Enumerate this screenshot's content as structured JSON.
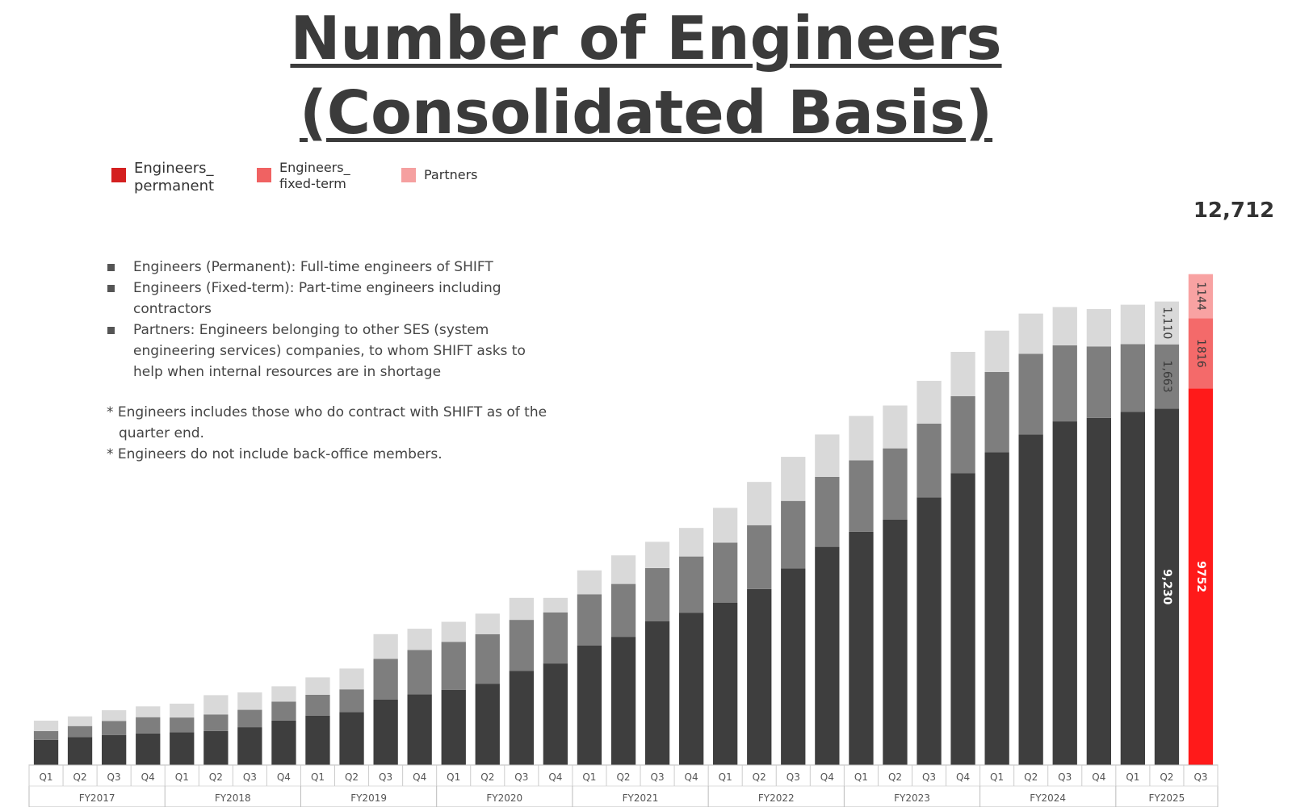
{
  "title_line1": "Number of Engineers",
  "title_line2": "(Consolidated Basis)",
  "legend": [
    {
      "label": "Engineers_\npermanent",
      "color": "#d42020"
    },
    {
      "label": "Engineers_\nfixed-term",
      "color": "#f06262"
    },
    {
      "label": "Partners",
      "color": "#f5a0a0"
    }
  ],
  "notes": [
    "Engineers (Permanent): Full-time engineers of SHIFT",
    "Engineers (Fixed-term): Part-time engineers including contractors",
    "Partners: Engineers belonging to other SES (system engineering services) companies, to whom SHIFT asks to help when internal resources are in shortage"
  ],
  "footnotes": [
    "* Engineers includes those who do contract with SHIFT as of the quarter end.",
    "* Engineers do not include back-office members."
  ],
  "total_label": "12,712",
  "chart_data": {
    "type": "bar",
    "stacked": true,
    "categories": [
      "Q1",
      "Q2",
      "Q3",
      "Q4",
      "Q1",
      "Q2",
      "Q3",
      "Q4",
      "Q1",
      "Q2",
      "Q3",
      "Q4",
      "Q1",
      "Q2",
      "Q3",
      "Q4",
      "Q1",
      "Q2",
      "Q3",
      "Q4",
      "Q1",
      "Q2",
      "Q3",
      "Q4",
      "Q1",
      "Q2",
      "Q3",
      "Q4",
      "Q1",
      "Q2",
      "Q3",
      "Q4",
      "Q1",
      "Q2",
      "Q3"
    ],
    "groups": [
      {
        "label": "FY2017",
        "count": 4
      },
      {
        "label": "FY2018",
        "count": 4
      },
      {
        "label": "FY2019",
        "count": 4
      },
      {
        "label": "FY2020",
        "count": 4
      },
      {
        "label": "FY2021",
        "count": 4
      },
      {
        "label": "FY2022",
        "count": 4
      },
      {
        "label": "FY2023",
        "count": 4
      },
      {
        "label": "FY2024",
        "count": 4
      },
      {
        "label": "FY2025",
        "count": 3
      }
    ],
    "series": [
      {
        "name": "Engineers_permanent",
        "values": [
          650,
          720,
          780,
          820,
          850,
          880,
          980,
          1150,
          1280,
          1370,
          1700,
          1830,
          1950,
          2100,
          2440,
          2630,
          3100,
          3320,
          3720,
          3940,
          4200,
          4560,
          5090,
          5650,
          6040,
          6360,
          6930,
          7560,
          8100,
          8560,
          8900,
          8990,
          9150,
          9230,
          9752
        ]
      },
      {
        "name": "Engineers_fixed-term",
        "values": [
          230,
          290,
          360,
          420,
          380,
          430,
          450,
          490,
          540,
          590,
          1050,
          1150,
          1240,
          1290,
          1320,
          1320,
          1320,
          1370,
          1380,
          1460,
          1560,
          1650,
          1750,
          1810,
          1850,
          1840,
          1910,
          1990,
          2080,
          2090,
          1970,
          1850,
          1750,
          1663,
          1816
        ]
      },
      {
        "name": "Partners",
        "values": [
          270,
          250,
          280,
          280,
          360,
          500,
          450,
          400,
          450,
          540,
          640,
          550,
          520,
          530,
          570,
          380,
          620,
          740,
          680,
          740,
          900,
          1120,
          1140,
          1100,
          1150,
          1110,
          1110,
          1150,
          1070,
          1040,
          990,
          970,
          1020,
          1110,
          1144
        ]
      }
    ],
    "label_last_two": {
      "Q2": {
        "permanent": "9,230",
        "fixed_term": "1,663",
        "partners": "1,110"
      },
      "Q3": {
        "permanent": "9752",
        "fixed_term": "1816",
        "partners": "1144"
      }
    },
    "ylim": [
      0,
      13500
    ],
    "colors": {
      "previous": [
        "#3e3e3e",
        "#7e7e7e",
        "#d9d9d9"
      ],
      "current": [
        "#ff1a1a",
        "#f46a6a",
        "#f8a2a2"
      ]
    }
  }
}
